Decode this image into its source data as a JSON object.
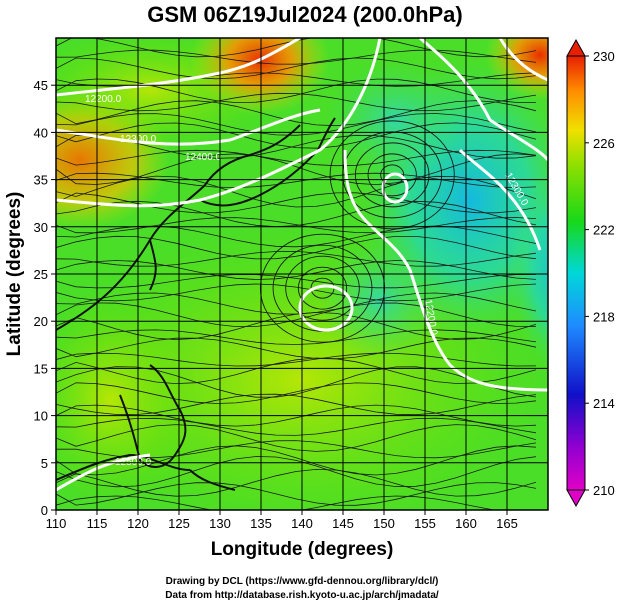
{
  "chart_data": {
    "type": "heatmap",
    "title": "GSM 06Z19Jul2024 (200.0hPa)",
    "xlabel": "Longitude (degrees)",
    "ylabel": "Latitude  (degrees)",
    "xlim": [
      110,
      170
    ],
    "ylim": [
      0,
      50
    ],
    "x_ticks": [
      110,
      115,
      120,
      125,
      130,
      135,
      140,
      145,
      150,
      155,
      160,
      165
    ],
    "y_ticks": [
      0,
      5,
      10,
      15,
      20,
      25,
      30,
      35,
      40,
      45
    ],
    "grid": true,
    "colorbar": {
      "min": 210,
      "max": 230,
      "ticks": [
        210,
        214,
        218,
        222,
        226,
        230
      ],
      "placement": "right"
    },
    "contour_labels": [
      "12200.0",
      "12300.0",
      "12400.0",
      "12500.0",
      "12200.0",
      "12300.0"
    ],
    "field_samples": [
      {
        "lon": 112,
        "lat": 47,
        "value": 224
      },
      {
        "lon": 112,
        "lat": 37,
        "value": 226
      },
      {
        "lon": 133,
        "lat": 47,
        "value": 229
      },
      {
        "lon": 167,
        "lat": 48,
        "value": 228
      },
      {
        "lon": 160,
        "lat": 40,
        "value": 219
      },
      {
        "lon": 165,
        "lat": 28,
        "value": 219
      },
      {
        "lon": 150,
        "lat": 36,
        "value": 221
      },
      {
        "lon": 143,
        "lat": 24,
        "value": 222
      },
      {
        "lon": 125,
        "lat": 20,
        "value": 223
      },
      {
        "lon": 130,
        "lat": 5,
        "value": 223
      }
    ],
    "closed_centers": [
      {
        "lon": 151,
        "lat": 35.5,
        "kind": "cyclonic"
      },
      {
        "lon": 142.5,
        "lat": 23.5,
        "kind": "anticyclonic"
      }
    ]
  },
  "credits": {
    "line1": "Drawing by DCL (https://www.gfd-dennou.org/library/dcl/)",
    "line2": "Data from http://database.rish.kyoto-u.ac.jp/arch/jmadata/"
  }
}
